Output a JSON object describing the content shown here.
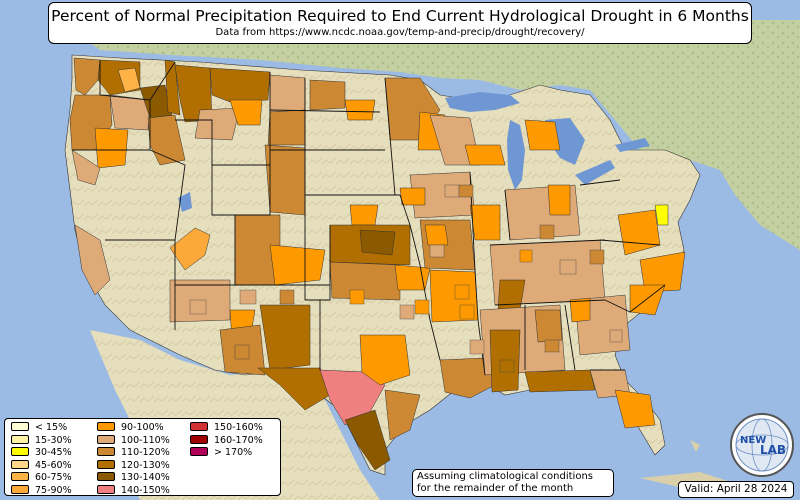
{
  "header": {
    "title": "Percent of Normal Precipitation Required to End Current Hydrological Drought in 6 Months",
    "source": "Data from https://www.ncdc.noaa.gov/temp-and-precip/drought/recovery/"
  },
  "legend": {
    "categories": [
      {
        "label": "< 15%",
        "color": "#ffffd4"
      },
      {
        "label": "15-30%",
        "color": "#fff3a6"
      },
      {
        "label": "30-45%",
        "color": "#ffff00"
      },
      {
        "label": "45-60%",
        "color": "#ffd58a"
      },
      {
        "label": "60-75%",
        "color": "#ffb347"
      },
      {
        "label": "75-90%",
        "color": "#fda93a"
      },
      {
        "label": "90-100%",
        "color": "#ff9900"
      },
      {
        "label": "100-110%",
        "color": "#deaa78"
      },
      {
        "label": "110-120%",
        "color": "#cc8833"
      },
      {
        "label": "120-130%",
        "color": "#b06f00"
      },
      {
        "label": "130-140%",
        "color": "#8b5a00"
      },
      {
        "label": "140-150%",
        "color": "#f08080"
      },
      {
        "label": "150-160%",
        "color": "#d03030"
      },
      {
        "label": "160-170%",
        "color": "#a00000"
      },
      {
        "label": "> 170%",
        "color": "#b0005a"
      }
    ]
  },
  "note": {
    "line1": "Assuming climatological conditions",
    "line2": "for the remainder of the month"
  },
  "valid": "Valid: April 28 2024",
  "logo": {
    "text1": "NEW",
    "text2": "LAB"
  },
  "colors": {
    "ocean": "#9bbbe4",
    "land": "#e8e2c0",
    "mountain": "#c9bd98",
    "forest": "#b7c89a",
    "lake": "#6f97d4"
  }
}
